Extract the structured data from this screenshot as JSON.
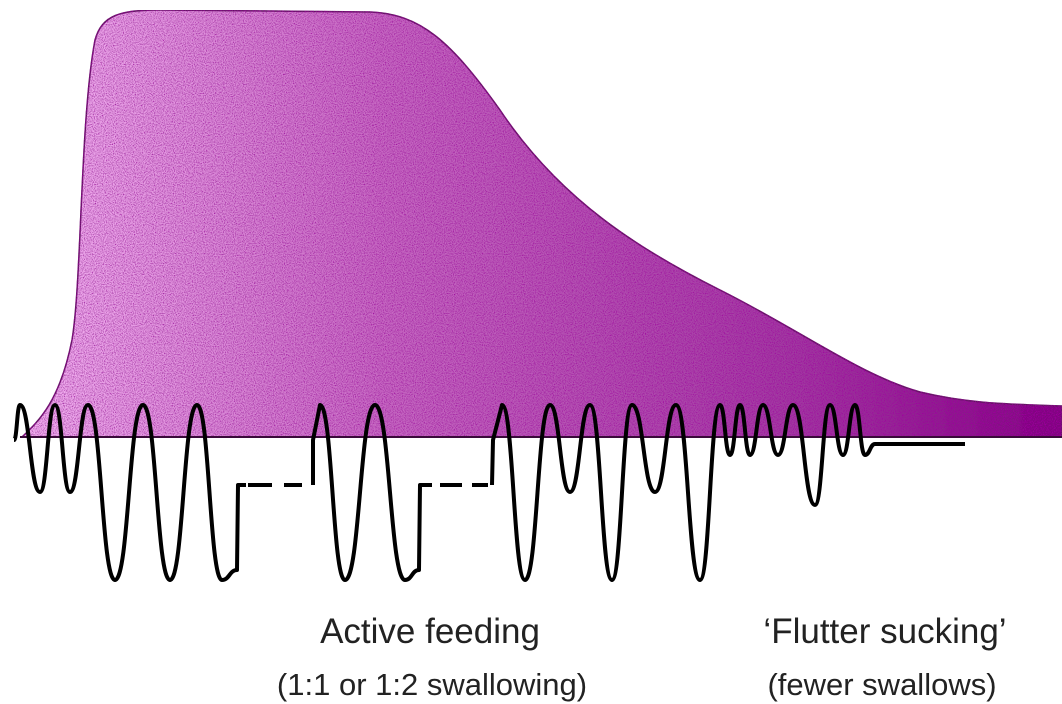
{
  "labels": [
    {
      "title": "Active feeding",
      "subtitle": "(1:1 or 1:2 swallowing)"
    },
    {
      "title": "‘Flutter sucking’",
      "subtitle": "(fewer swallows)"
    }
  ]
}
